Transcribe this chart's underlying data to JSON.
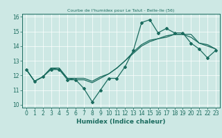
{
  "title": "Courbe de l'humidex pour Le Talut - Belle-Ile (56)",
  "xlabel": "Humidex (Indice chaleur)",
  "background_color": "#cde8e4",
  "grid_color": "#ffffff",
  "line_color": "#1a6b5e",
  "xlim": [
    -0.5,
    23.5
  ],
  "ylim": [
    9.8,
    16.2
  ],
  "yticks": [
    10,
    11,
    12,
    13,
    14,
    15,
    16
  ],
  "xticks": [
    0,
    1,
    2,
    3,
    4,
    5,
    6,
    7,
    8,
    9,
    10,
    11,
    12,
    13,
    14,
    15,
    16,
    17,
    18,
    19,
    20,
    21,
    22,
    23
  ],
  "series1": [
    12.4,
    11.6,
    11.9,
    12.4,
    12.4,
    11.7,
    11.7,
    11.1,
    10.2,
    11.0,
    11.8,
    11.8,
    12.6,
    13.7,
    15.6,
    15.8,
    14.9,
    15.2,
    14.9,
    14.9,
    14.2,
    13.8,
    13.2,
    13.7
  ],
  "series2": [
    12.4,
    11.6,
    11.9,
    12.5,
    12.4,
    11.8,
    11.7,
    11.7,
    11.5,
    11.8,
    12.1,
    12.5,
    13.0,
    13.6,
    14.1,
    14.4,
    14.5,
    14.7,
    14.8,
    14.8,
    14.8,
    14.2,
    14.1,
    13.8
  ],
  "series3": [
    12.4,
    11.6,
    11.9,
    12.5,
    12.5,
    11.8,
    11.8,
    11.8,
    11.6,
    11.9,
    12.1,
    12.5,
    13.0,
    13.5,
    14.0,
    14.3,
    14.5,
    14.6,
    14.8,
    14.8,
    14.6,
    14.2,
    14.0,
    13.8
  ]
}
